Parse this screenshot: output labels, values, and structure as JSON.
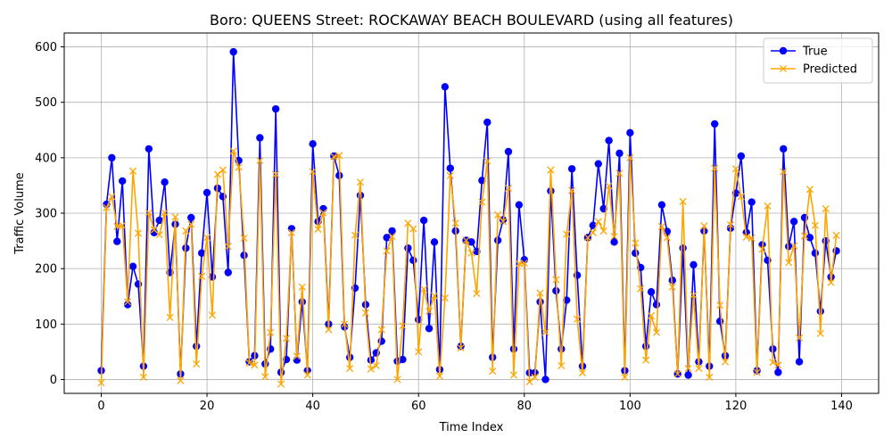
{
  "chart_data": {
    "type": "line",
    "title": "Boro: QUEENS Street: ROCKAWAY BEACH BOULEVARD (using all features)",
    "xlabel": "Time Index",
    "ylabel": "Traffic Volume",
    "xlim": [
      -7,
      147
    ],
    "ylim": [
      -25,
      625
    ],
    "xticks": [
      0,
      20,
      40,
      60,
      80,
      100,
      120,
      140
    ],
    "yticks": [
      0,
      100,
      200,
      300,
      400,
      500,
      600
    ],
    "grid": true,
    "legend_position": "top-right",
    "x": [
      0,
      1,
      2,
      3,
      4,
      5,
      6,
      7,
      8,
      9,
      10,
      11,
      12,
      13,
      14,
      15,
      16,
      17,
      18,
      19,
      20,
      21,
      22,
      23,
      24,
      25,
      26,
      27,
      28,
      29,
      30,
      31,
      32,
      33,
      34,
      35,
      36,
      37,
      38,
      39,
      40,
      41,
      42,
      43,
      44,
      45,
      46,
      47,
      48,
      49,
      50,
      51,
      52,
      53,
      54,
      55,
      56,
      57,
      58,
      59,
      60,
      61,
      62,
      63,
      64,
      65,
      66,
      67,
      68,
      69,
      70,
      71,
      72,
      73,
      74,
      75,
      76,
      77,
      78,
      79,
      80,
      81,
      82,
      83,
      84,
      85,
      86,
      87,
      88,
      89,
      90,
      91,
      92,
      93,
      94,
      95,
      96,
      97,
      98,
      99,
      100,
      101,
      102,
      103,
      104,
      105,
      106,
      107,
      108,
      109,
      110,
      111,
      112,
      113,
      114,
      115,
      116,
      117,
      118,
      119,
      120,
      121,
      122,
      123,
      124,
      125,
      126,
      127,
      128,
      129,
      130,
      131,
      132,
      133,
      134,
      135,
      136,
      137,
      138,
      139
    ],
    "series": [
      {
        "name": "True",
        "color": "#0000ff",
        "marker": "circle",
        "values": [
          16,
          316,
          400,
          249,
          358,
          135,
          204,
          172,
          24,
          416,
          265,
          287,
          356,
          193,
          280,
          10,
          237,
          292,
          60,
          228,
          337,
          185,
          345,
          330,
          193,
          591,
          395,
          224,
          32,
          43,
          436,
          28,
          55,
          488,
          13,
          36,
          272,
          35,
          140,
          16,
          425,
          285,
          308,
          100,
          403,
          368,
          95,
          40,
          165,
          332,
          135,
          35,
          48,
          69,
          256,
          268,
          33,
          36,
          237,
          215,
          108,
          287,
          92,
          248,
          18,
          528,
          381,
          268,
          60,
          251,
          248,
          231,
          359,
          464,
          40,
          251,
          288,
          411,
          55,
          315,
          216,
          12,
          12,
          140,
          0,
          340,
          160,
          55,
          143,
          380,
          188,
          24,
          256,
          278,
          389,
          308,
          431,
          248,
          408,
          16,
          445,
          228,
          202,
          60,
          158,
          135,
          315,
          267,
          179,
          10,
          237,
          8,
          207,
          32,
          268,
          24,
          461,
          105,
          43,
          273,
          336,
          403,
          265,
          320,
          16,
          243,
          215,
          55,
          13,
          416,
          240,
          285,
          32,
          292,
          256,
          228,
          123,
          250,
          185,
          232
        ]
      },
      {
        "name": "Predicted",
        "color": "#ffa500",
        "marker": "x",
        "values": [
          -6,
          310,
          330,
          276,
          278,
          140,
          376,
          264,
          4,
          301,
          270,
          261,
          301,
          112,
          293,
          -2,
          268,
          280,
          28,
          186,
          256,
          116,
          370,
          378,
          240,
          412,
          383,
          255,
          30,
          26,
          395,
          5,
          85,
          370,
          -8,
          74,
          265,
          42,
          167,
          8,
          375,
          271,
          301,
          90,
          402,
          404,
          100,
          20,
          260,
          356,
          120,
          19,
          25,
          90,
          232,
          258,
          0,
          97,
          282,
          272,
          50,
          163,
          123,
          151,
          6,
          147,
          368,
          282,
          57,
          251,
          228,
          155,
          320,
          394,
          15,
          297,
          285,
          345,
          8,
          209,
          210,
          -4,
          4,
          156,
          85,
          378,
          180,
          25,
          262,
          341,
          109,
          12,
          256,
          265,
          285,
          268,
          349,
          258,
          372,
          4,
          400,
          246,
          164,
          35,
          115,
          85,
          276,
          256,
          167,
          10,
          321,
          20,
          152,
          20,
          277,
          4,
          381,
          134,
          32,
          279,
          380,
          330,
          257,
          255,
          13,
          235,
          313,
          31,
          26,
          375,
          211,
          241,
          75,
          259,
          343,
          278,
          83,
          308,
          175,
          260
        ]
      }
    ]
  }
}
